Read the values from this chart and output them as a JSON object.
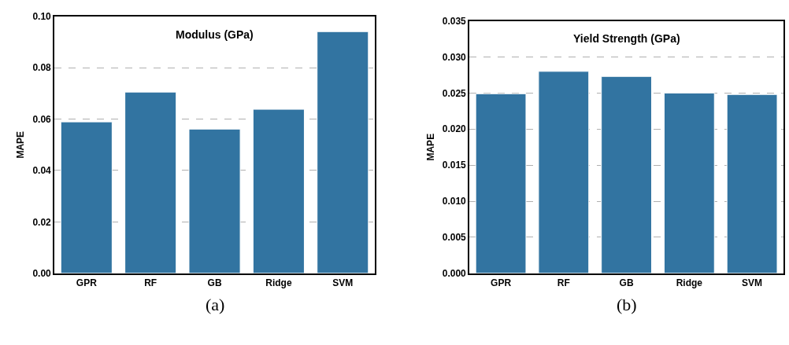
{
  "chart_data": [
    {
      "type": "bar",
      "title": "Modulus (GPa)",
      "ylabel": "MAPE",
      "categories": [
        "GPR",
        "RF",
        "GB",
        "Ridge",
        "SVM"
      ],
      "values": [
        0.0589,
        0.0705,
        0.0561,
        0.0638,
        0.094
      ],
      "color": "#3274a1",
      "ylim": [
        0,
        0.1
      ],
      "yticks": [
        {
          "value": 0,
          "label": "0.00"
        },
        {
          "value": 0.02,
          "label": "0.02"
        },
        {
          "value": 0.04,
          "label": "0.04"
        },
        {
          "value": 0.06,
          "label": "0.06"
        },
        {
          "value": 0.08,
          "label": "0.08"
        },
        {
          "value": 0.1,
          "label": "0.10"
        }
      ],
      "grid": "y",
      "annotations": [
        "(a)"
      ]
    },
    {
      "type": "bar",
      "title": "Yield Strength (GPa)",
      "ylabel": "MAPE",
      "categories": [
        "GPR",
        "RF",
        "GB",
        "Ridge",
        "SVM"
      ],
      "values": [
        0.0249,
        0.028,
        0.0273,
        0.025,
        0.0248
      ],
      "color": "#3274a1",
      "ylim": [
        0,
        0.035
      ],
      "yticks": [
        {
          "value": 0,
          "label": "0.000"
        },
        {
          "value": 0.005,
          "label": "0.005"
        },
        {
          "value": 0.01,
          "label": "0.010"
        },
        {
          "value": 0.015,
          "label": "0.015"
        },
        {
          "value": 0.02,
          "label": "0.020"
        },
        {
          "value": 0.025,
          "label": "0.025"
        },
        {
          "value": 0.03,
          "label": "0.030"
        },
        {
          "value": 0.035,
          "label": "0.035"
        }
      ],
      "grid": "y",
      "annotations": [
        "(b)"
      ]
    }
  ]
}
